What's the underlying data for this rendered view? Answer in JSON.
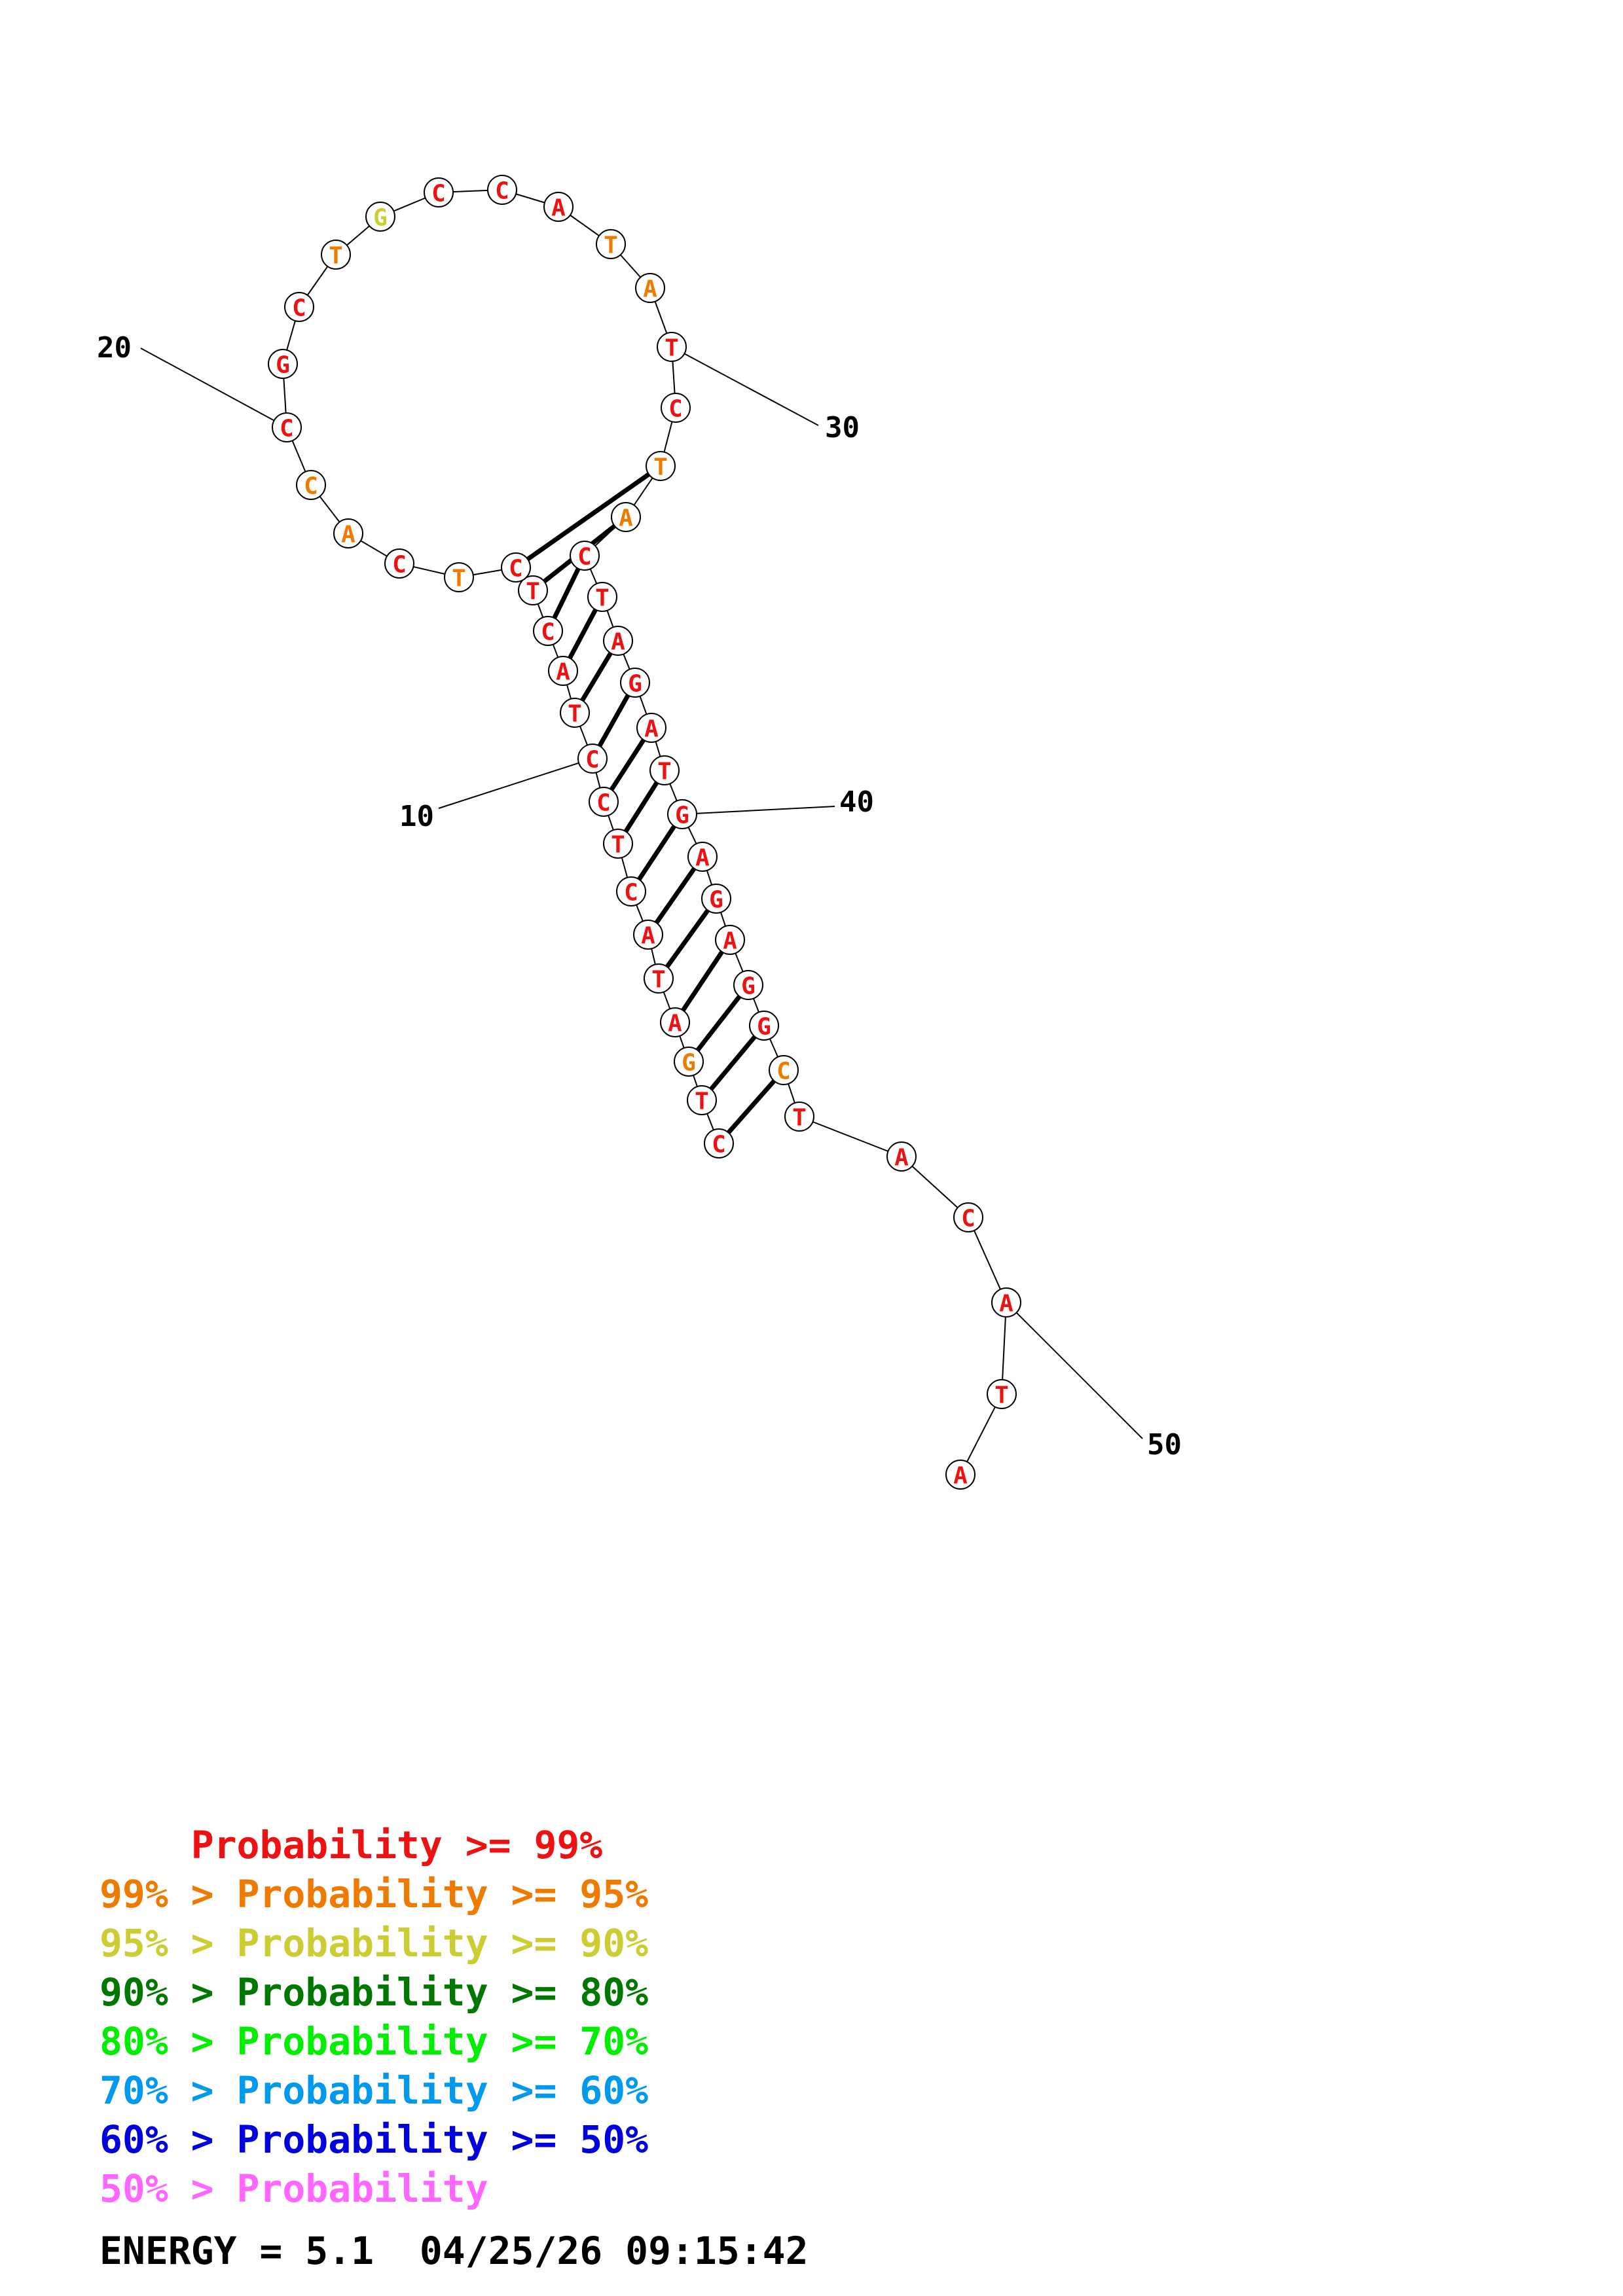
{
  "structure": {
    "sequence": [
      "C",
      "T",
      "G",
      "A",
      "T",
      "A",
      "C",
      "T",
      "C",
      "C",
      "T",
      "A",
      "C",
      "T",
      "C",
      "T",
      "C",
      "A",
      "C",
      "C",
      "G",
      "C",
      "T",
      "G",
      "C",
      "C",
      "A",
      "T",
      "A",
      "T",
      "C",
      "T",
      "A",
      "C",
      "T",
      "A",
      "G",
      "A",
      "T",
      "G",
      "A",
      "G",
      "A",
      "G",
      "G",
      "C",
      "T",
      "A",
      "C",
      "A",
      "T",
      "A"
    ],
    "confidence": [
      "hi",
      "hi",
      "or",
      "hi",
      "hi",
      "hi",
      "hi",
      "hi",
      "hi",
      "hi",
      "hi",
      "hi",
      "hi",
      "hi",
      "hi",
      "or",
      "hi",
      "or",
      "or",
      "hi",
      "hi",
      "hi",
      "or",
      "yl",
      "hi",
      "hi",
      "hi",
      "or",
      "or",
      "hi",
      "hi",
      "or",
      "or",
      "hi",
      "hi",
      "hi",
      "hi",
      "hi",
      "hi",
      "hi",
      "hi",
      "hi",
      "hi",
      "hi",
      "hi",
      "or",
      "hi",
      "hi",
      "hi",
      "hi",
      "hi",
      "hi"
    ],
    "pairs": [
      [
        1,
        46
      ],
      [
        2,
        45
      ],
      [
        3,
        44
      ],
      [
        4,
        43
      ],
      [
        5,
        42
      ],
      [
        6,
        41
      ],
      [
        7,
        40
      ],
      [
        8,
        39
      ],
      [
        9,
        38
      ],
      [
        10,
        37
      ],
      [
        11,
        36
      ],
      [
        12,
        35
      ],
      [
        13,
        34
      ],
      [
        14,
        33
      ],
      [
        15,
        32
      ]
    ],
    "index_labels": [
      "10",
      "20",
      "30",
      "40",
      "50"
    ]
  },
  "colors": {
    "hi": "#ee1111",
    "or": "#ee7a00",
    "yl": "#cccc33",
    "dg": "#007700",
    "lg": "#00ee00",
    "sb": "#0099ee",
    "bl": "#0000dd",
    "pk": "#ff66ff"
  },
  "legend": [
    {
      "prefix": "    ",
      "text": "Probability >= 99%",
      "color": "#ee1111"
    },
    {
      "prefix": "99% > ",
      "text": "Probability >= 95%",
      "color": "#ee7a00"
    },
    {
      "prefix": "95% > ",
      "text": "Probability >= 90%",
      "color": "#cccc33"
    },
    {
      "prefix": "90% > ",
      "text": "Probability >= 80%",
      "color": "#007700"
    },
    {
      "prefix": "80% > ",
      "text": "Probability >= 70%",
      "color": "#00ee00"
    },
    {
      "prefix": "70% > ",
      "text": "Probability >= 60%",
      "color": "#0099ee"
    },
    {
      "prefix": "60% > ",
      "text": "Probability >= 50%",
      "color": "#0000dd"
    },
    {
      "prefix": "50% > ",
      "text": "Probability",
      "color": "#ff66ff"
    }
  ],
  "footer": {
    "energy_label": "ENERGY = 5.1",
    "timestamp": "04/25/26 09:15:42"
  }
}
